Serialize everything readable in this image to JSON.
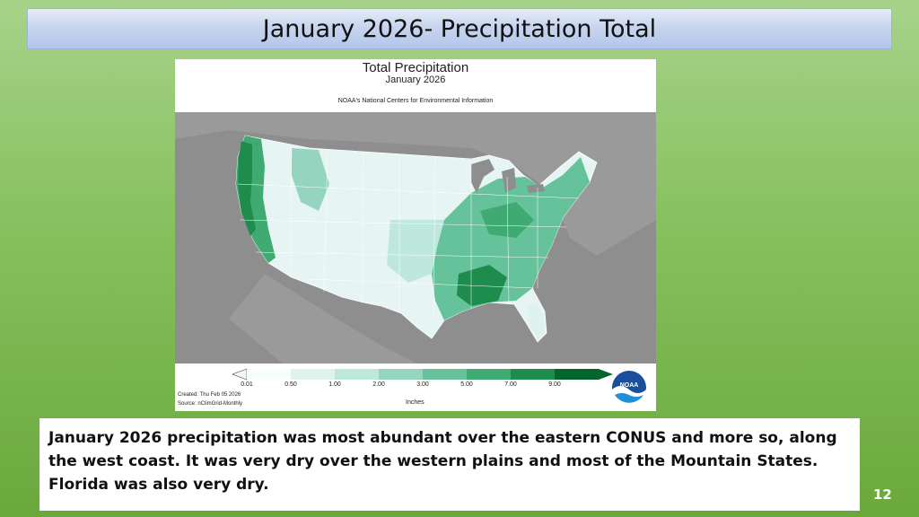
{
  "slide": {
    "title": "January 2026- Precipitation Total",
    "caption": "January 2026 precipitation was most abundant over the eastern CONUS and more so, along the west coast. It was very dry over the western plains and most of the Mountain States. Florida was also very dry.",
    "slide_number": "12"
  },
  "map": {
    "title": "Total Precipitation",
    "subtitle": "January 2026",
    "source_org": "NOAA's National Centers for Environmental Information",
    "created": "Created: Thu Feb 05 2026",
    "source": "Source: nClimGrid-Monthly",
    "units": "Inches",
    "logo_text": "NOAA",
    "legend": {
      "ticks": [
        "0.01",
        "0.50",
        "1.00",
        "2.00",
        "3.00",
        "5.00",
        "7.00",
        "9.00"
      ],
      "colors": [
        "#f7fcfd",
        "#dff2ee",
        "#bee8dc",
        "#95d5bf",
        "#66c29b",
        "#3fab72",
        "#1e8c4c",
        "#05652f"
      ]
    },
    "colors": {
      "background": "#8e8e8e",
      "land_dry": "#e6f4f4",
      "land_light": "#bfe6dc",
      "land_mid": "#8fd1b8",
      "land_wet": "#52b486",
      "land_very_wet": "#1e8c4c",
      "water": "#8e8e8e"
    }
  }
}
